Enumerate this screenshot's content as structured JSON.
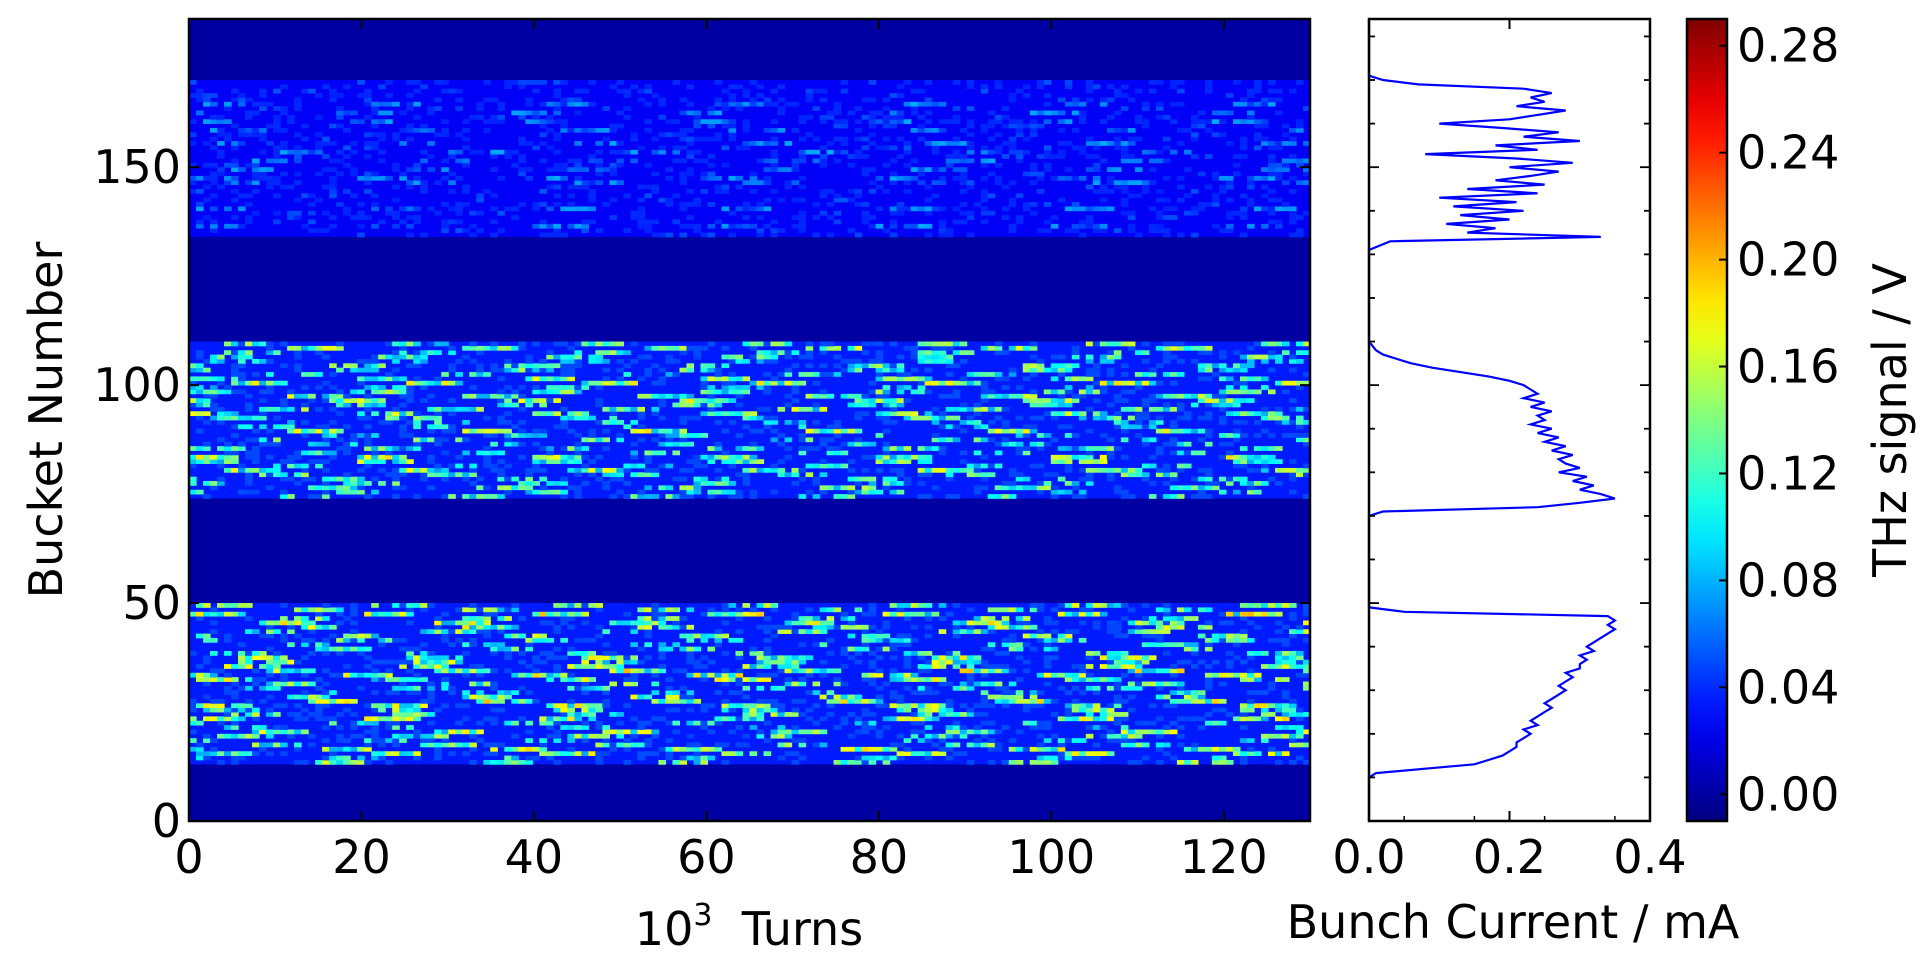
{
  "chart_data": [
    {
      "type": "heatmap",
      "xlabel_base": "10",
      "xlabel_exp": "3",
      "xlabel_text": "Turns",
      "ylabel": "Bucket Number",
      "xlim": [
        0,
        130
      ],
      "ylim": [
        0,
        184
      ],
      "xticks": [
        0,
        20,
        40,
        60,
        80,
        100,
        120
      ],
      "yticks": [
        0,
        50,
        100,
        150
      ],
      "colormap": "jet",
      "value_range": [
        -0.01,
        0.29
      ],
      "background_value": 0.0,
      "filled_bunch_ranges": [
        {
          "from": 13,
          "to": 50,
          "level": "high",
          "hot_value": 0.2
        },
        {
          "from": 74,
          "to": 110,
          "level": "high",
          "hot_value": 0.19
        },
        {
          "from": 134,
          "to": 170,
          "level": "low",
          "hot_value": 0.1
        }
      ],
      "dominant_mean_value": 0.03
    },
    {
      "type": "line",
      "xlabel": "Bunch Current / mA",
      "ylabel": "",
      "xlim": [
        0.0,
        0.4
      ],
      "ylim": [
        0,
        184
      ],
      "xticks": [
        "0.0",
        "0.2",
        "0.4"
      ],
      "series": [
        {
          "color": "#0000ff",
          "points": [
            [
              0.0,
              0
            ],
            [
              0.0,
              10
            ],
            [
              0.01,
              11
            ],
            [
              0.08,
              12
            ],
            [
              0.15,
              13
            ],
            [
              0.17,
              14
            ],
            [
              0.19,
              15
            ],
            [
              0.2,
              16
            ],
            [
              0.21,
              17
            ],
            [
              0.21,
              18
            ],
            [
              0.22,
              19
            ],
            [
              0.23,
              20
            ],
            [
              0.22,
              21
            ],
            [
              0.24,
              22
            ],
            [
              0.23,
              23
            ],
            [
              0.24,
              24
            ],
            [
              0.25,
              25
            ],
            [
              0.26,
              26
            ],
            [
              0.25,
              27
            ],
            [
              0.26,
              28
            ],
            [
              0.27,
              29
            ],
            [
              0.28,
              30
            ],
            [
              0.27,
              31
            ],
            [
              0.28,
              32
            ],
            [
              0.29,
              33
            ],
            [
              0.28,
              34
            ],
            [
              0.3,
              35
            ],
            [
              0.3,
              36
            ],
            [
              0.31,
              37
            ],
            [
              0.3,
              38
            ],
            [
              0.32,
              39
            ],
            [
              0.31,
              40
            ],
            [
              0.32,
              41
            ],
            [
              0.33,
              42
            ],
            [
              0.34,
              43
            ],
            [
              0.35,
              44
            ],
            [
              0.34,
              45
            ],
            [
              0.35,
              46
            ],
            [
              0.34,
              47
            ],
            [
              0.05,
              48
            ],
            [
              0.0,
              49
            ],
            [
              0.0,
              50
            ],
            [
              0.0,
              70
            ],
            [
              0.02,
              71
            ],
            [
              0.24,
              72
            ],
            [
              0.3,
              73
            ],
            [
              0.35,
              74
            ],
            [
              0.33,
              75
            ],
            [
              0.3,
              76
            ],
            [
              0.32,
              77
            ],
            [
              0.29,
              78
            ],
            [
              0.31,
              79
            ],
            [
              0.27,
              80
            ],
            [
              0.3,
              81
            ],
            [
              0.28,
              82
            ],
            [
              0.27,
              83
            ],
            [
              0.29,
              84
            ],
            [
              0.26,
              85
            ],
            [
              0.28,
              86
            ],
            [
              0.25,
              87
            ],
            [
              0.27,
              88
            ],
            [
              0.24,
              89
            ],
            [
              0.26,
              90
            ],
            [
              0.23,
              91
            ],
            [
              0.25,
              92
            ],
            [
              0.24,
              93
            ],
            [
              0.26,
              94
            ],
            [
              0.23,
              95
            ],
            [
              0.25,
              96
            ],
            [
              0.22,
              97
            ],
            [
              0.24,
              98
            ],
            [
              0.23,
              99
            ],
            [
              0.22,
              100
            ],
            [
              0.2,
              101
            ],
            [
              0.17,
              102
            ],
            [
              0.13,
              103
            ],
            [
              0.09,
              104
            ],
            [
              0.06,
              105
            ],
            [
              0.04,
              106
            ],
            [
              0.02,
              107
            ],
            [
              0.01,
              108
            ],
            [
              0.0,
              110
            ],
            [
              0.0,
              131
            ],
            [
              0.03,
              133
            ],
            [
              0.33,
              134
            ],
            [
              0.14,
              135
            ],
            [
              0.18,
              136
            ],
            [
              0.11,
              137
            ],
            [
              0.2,
              138
            ],
            [
              0.13,
              139
            ],
            [
              0.22,
              140
            ],
            [
              0.12,
              141
            ],
            [
              0.21,
              142
            ],
            [
              0.1,
              143
            ],
            [
              0.24,
              144
            ],
            [
              0.14,
              145
            ],
            [
              0.25,
              146
            ],
            [
              0.18,
              147
            ],
            [
              0.23,
              148
            ],
            [
              0.27,
              149
            ],
            [
              0.2,
              150
            ],
            [
              0.29,
              151
            ],
            [
              0.21,
              152
            ],
            [
              0.08,
              153
            ],
            [
              0.24,
              154
            ],
            [
              0.18,
              155
            ],
            [
              0.3,
              156
            ],
            [
              0.22,
              157
            ],
            [
              0.27,
              158
            ],
            [
              0.19,
              159
            ],
            [
              0.1,
              160
            ],
            [
              0.2,
              161
            ],
            [
              0.24,
              162
            ],
            [
              0.28,
              163
            ],
            [
              0.21,
              164
            ],
            [
              0.25,
              165
            ],
            [
              0.23,
              166
            ],
            [
              0.26,
              167
            ],
            [
              0.22,
              168
            ],
            [
              0.07,
              169
            ],
            [
              0.02,
              170
            ],
            [
              0.0,
              171
            ],
            [
              0.0,
              184
            ]
          ]
        }
      ]
    },
    {
      "type": "colorbar",
      "label": "THz signal / V",
      "colormap": "jet",
      "range": [
        -0.01,
        0.29
      ],
      "ticks": [
        "0.00",
        "0.04",
        "0.08",
        "0.12",
        "0.16",
        "0.20",
        "0.24",
        "0.28"
      ],
      "tick_values": [
        0.0,
        0.04,
        0.08,
        0.12,
        0.16,
        0.2,
        0.24,
        0.28
      ]
    }
  ]
}
